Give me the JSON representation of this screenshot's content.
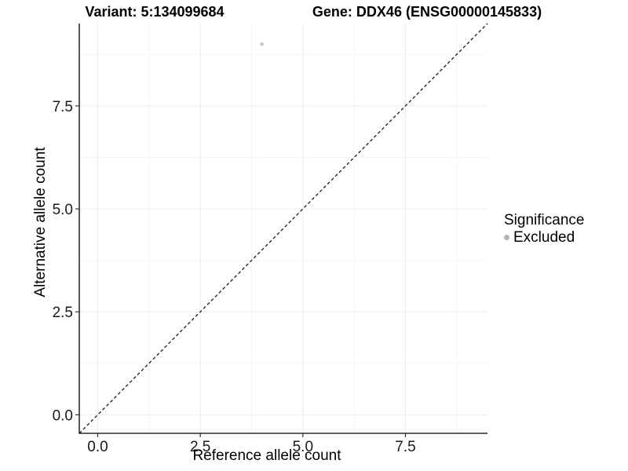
{
  "chart_data": {
    "type": "scatter",
    "title_left": "Variant: 5:134099684",
    "title_right": "Gene: DDX46 (ENSG00000145833)",
    "xlabel": "Reference allele count",
    "ylabel": "Alternative allele count",
    "xlim": [
      -0.45,
      9.5
    ],
    "ylim": [
      -0.45,
      9.5
    ],
    "x_ticks": [
      0,
      2.5,
      5,
      7.5
    ],
    "x_tick_labels": [
      "0.0",
      "2.5",
      "5.0",
      "7.5"
    ],
    "y_ticks": [
      0,
      2.5,
      5,
      7.5
    ],
    "y_tick_labels": [
      "0.0",
      "2.5",
      "5.0",
      "7.5"
    ],
    "x_minor_ticks": [
      1.25,
      3.75,
      6.25,
      8.75
    ],
    "y_minor_ticks": [
      1.25,
      3.75,
      6.25,
      8.75
    ],
    "grid": true,
    "series": [
      {
        "name": "Excluded",
        "color": "#c6c6c6",
        "points": [
          [
            4,
            9
          ]
        ]
      }
    ],
    "reference_line": {
      "slope": 1,
      "intercept": 0,
      "style": "dashed",
      "color": "#1a1a1a"
    },
    "legend": {
      "title": "Significance",
      "position": "right",
      "items": [
        {
          "label": "Excluded",
          "color": "#b3b3b3"
        }
      ]
    },
    "colors": {
      "grid_major": "#ebebeb",
      "grid_minor": "#f4f4f4",
      "axis_line": "#000000",
      "tick": "#333333",
      "tick_label": "#1a1a1a"
    }
  }
}
